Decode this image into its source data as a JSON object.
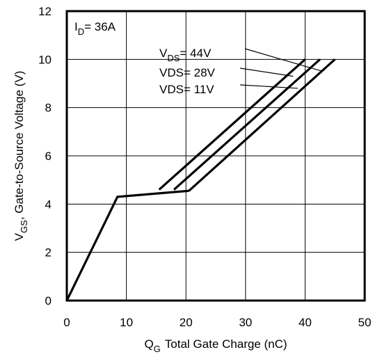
{
  "chart_data": {
    "type": "line",
    "xlabel_main": "Q",
    "xlabel_sub": "G",
    "xlabel_rest": "Total Gate Charge (nC)",
    "ylabel_main": "V",
    "ylabel_sub": "GS",
    "ylabel_rest": ", Gate-to-Source Voltage (V)",
    "xlim": [
      0,
      50
    ],
    "ylim": [
      0,
      12
    ],
    "x_ticks": [
      "0",
      "10",
      "20",
      "30",
      "40",
      "50"
    ],
    "y_ticks": [
      "0",
      "2",
      "4",
      "6",
      "8",
      "10",
      "12"
    ],
    "grid": true,
    "condition": {
      "main": "I",
      "sub": "D",
      "rest": "= 36A"
    },
    "base_curve": {
      "x": [
        0,
        8.5,
        20.5
      ],
      "y": [
        0,
        4.3,
        4.55
      ]
    },
    "series": [
      {
        "name_main": "V",
        "name_sub": "DS",
        "name_rest": "= 44V",
        "x": [
          15.5,
          40
        ],
        "y": [
          4.6,
          10
        ]
      },
      {
        "name_main": "VDS",
        "name_sub": "",
        "name_rest": "= 28V",
        "x": [
          18,
          42.5
        ],
        "y": [
          4.6,
          10
        ]
      },
      {
        "name_main": "VDS",
        "name_sub": "",
        "name_rest": "= 11V",
        "x": [
          20.5,
          45
        ],
        "y": [
          4.55,
          10
        ]
      }
    ],
    "leader_targets": [
      {
        "x": 43,
        "y": 9.5
      },
      {
        "x": 38,
        "y": 9.3
      },
      {
        "x": 38.8,
        "y": 8.8
      }
    ]
  }
}
